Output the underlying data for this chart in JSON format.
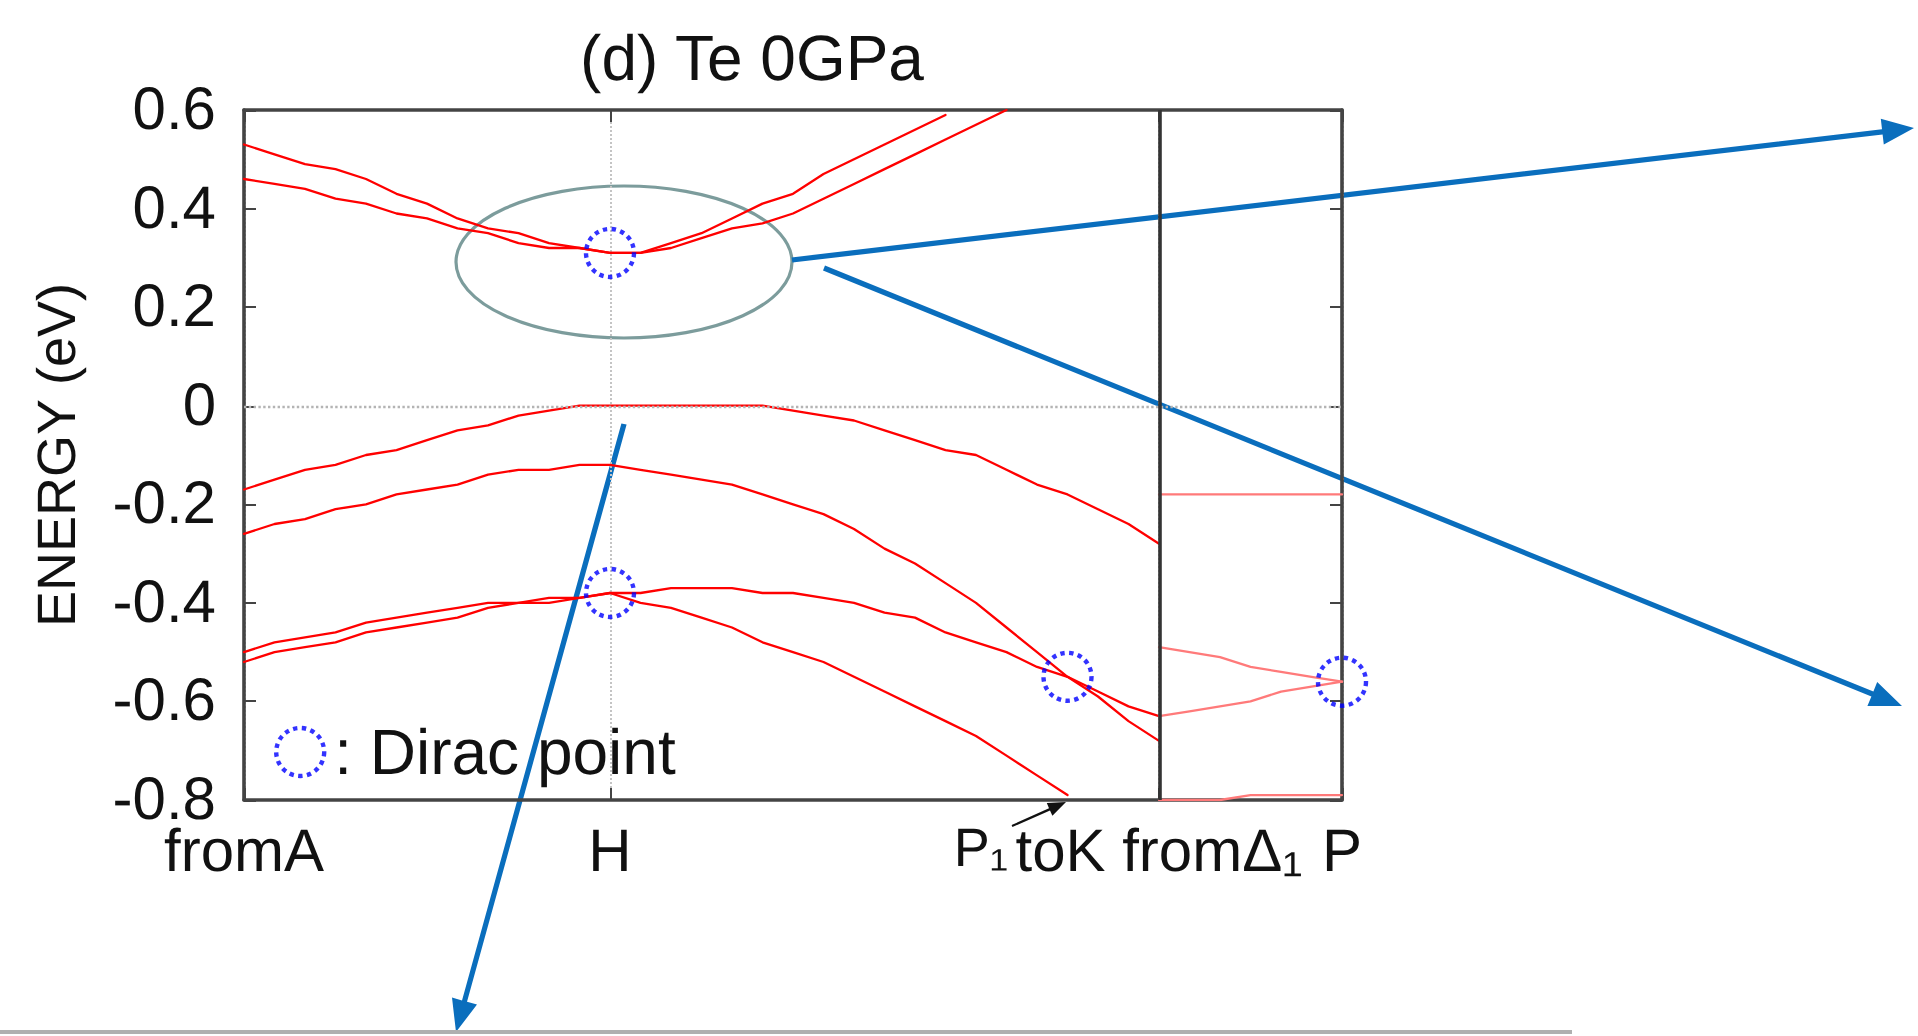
{
  "chart_data": {
    "type": "line",
    "title": "(d) Te 0GPa",
    "ylabel": "ENERGY (eV)",
    "categories": [
      "fromA",
      null,
      null,
      null,
      null,
      null,
      null,
      null,
      null,
      null,
      null,
      null,
      "H",
      null,
      null,
      null,
      null,
      null,
      null,
      null,
      null,
      null,
      null,
      null,
      null,
      null,
      null,
      null,
      null,
      null,
      "toK fromΔ₁",
      null,
      null,
      null,
      null,
      null,
      "P"
    ],
    "ylim": [
      -0.8,
      0.6
    ],
    "yticks": [
      -0.8,
      -0.6,
      -0.4,
      -0.2,
      0,
      0.2,
      0.4,
      0.6
    ],
    "grid": "x",
    "legend": "bottom left",
    "marker": "none",
    "series": [
      {
        "color": "#ff0000",
        "values": [
          0.53,
          0.51,
          0.49,
          0.48,
          0.46,
          0.43,
          0.41,
          0.38,
          0.36,
          0.35,
          0.33,
          0.32,
          0.31,
          0.31,
          0.33,
          0.35,
          0.38,
          0.41,
          0.43,
          0.47,
          0.5,
          0.53,
          0.56,
          0.59,
          null,
          null,
          null,
          null,
          null,
          null,
          null,
          null,
          null,
          null,
          null,
          null,
          null
        ]
      },
      {
        "color": "#ff0000",
        "values": [
          0.46,
          0.45,
          0.44,
          0.42,
          0.41,
          0.39,
          0.38,
          0.36,
          0.35,
          0.33,
          0.32,
          0.32,
          0.31,
          0.31,
          0.32,
          0.34,
          0.36,
          0.37,
          0.39,
          0.42,
          0.45,
          0.48,
          0.51,
          0.54,
          0.57,
          0.6,
          null,
          null,
          null,
          null,
          null,
          null,
          null,
          null,
          null,
          null,
          null
        ]
      },
      {
        "color": "#ff0000",
        "values": [
          -0.17,
          -0.15,
          -0.13,
          -0.12,
          -0.1,
          -0.09,
          -0.07,
          -0.05,
          -0.04,
          -0.02,
          -0.01,
          0,
          0,
          0,
          0,
          0,
          0,
          0,
          -0.01,
          -0.02,
          -0.03,
          -0.05,
          -0.07,
          -0.09,
          -0.1,
          -0.13,
          -0.16,
          -0.18,
          -0.21,
          -0.24,
          -0.28,
          null,
          null,
          null,
          null,
          null,
          null
        ]
      },
      {
        "color": "#ff0000",
        "values": [
          -0.26,
          -0.24,
          -0.23,
          -0.21,
          -0.2,
          -0.18,
          -0.17,
          -0.16,
          -0.14,
          -0.13,
          -0.13,
          -0.12,
          -0.12,
          -0.13,
          -0.14,
          -0.15,
          -0.16,
          -0.18,
          -0.2,
          -0.22,
          -0.25,
          -0.29,
          -0.32,
          -0.36,
          -0.4,
          -0.45,
          -0.5,
          -0.55,
          -0.59,
          -0.64,
          -0.68,
          null,
          null,
          null,
          null,
          null,
          null
        ]
      },
      {
        "color": "#ff0000",
        "values": [
          -0.5,
          -0.48,
          -0.47,
          -0.46,
          -0.44,
          -0.43,
          -0.42,
          -0.41,
          -0.4,
          -0.4,
          -0.39,
          -0.39,
          -0.38,
          -0.38,
          -0.37,
          -0.37,
          -0.37,
          -0.38,
          -0.38,
          -0.39,
          -0.4,
          -0.42,
          -0.43,
          -0.46,
          -0.48,
          -0.5,
          -0.53,
          -0.55,
          -0.58,
          -0.61,
          -0.63,
          null,
          null,
          null,
          null,
          null,
          null
        ]
      },
      {
        "color": "#ff0000",
        "values": [
          -0.52,
          -0.5,
          -0.49,
          -0.48,
          -0.46,
          -0.45,
          -0.44,
          -0.43,
          -0.41,
          -0.4,
          -0.4,
          -0.39,
          -0.38,
          -0.4,
          -0.41,
          -0.43,
          -0.45,
          -0.48,
          -0.5,
          -0.52,
          -0.55,
          -0.58,
          -0.61,
          -0.64,
          -0.67,
          -0.71,
          -0.75,
          -0.79,
          null,
          null,
          null,
          null,
          null,
          null,
          null,
          null,
          null
        ]
      },
      {
        "color": "#ff7a7a",
        "values": [
          null,
          null,
          null,
          null,
          null,
          null,
          null,
          null,
          null,
          null,
          null,
          null,
          null,
          null,
          null,
          null,
          null,
          null,
          null,
          null,
          null,
          null,
          null,
          null,
          null,
          null,
          null,
          null,
          null,
          null,
          -0.18,
          -0.18,
          -0.18,
          -0.18,
          -0.18,
          -0.18,
          -0.18
        ]
      },
      {
        "color": "#ff7a7a",
        "values": [
          null,
          null,
          null,
          null,
          null,
          null,
          null,
          null,
          null,
          null,
          null,
          null,
          null,
          null,
          null,
          null,
          null,
          null,
          null,
          null,
          null,
          null,
          null,
          null,
          null,
          null,
          null,
          null,
          null,
          null,
          -0.49,
          -0.5,
          -0.51,
          -0.53,
          -0.54,
          -0.55,
          -0.56
        ]
      },
      {
        "color": "#ff7a7a",
        "values": [
          null,
          null,
          null,
          null,
          null,
          null,
          null,
          null,
          null,
          null,
          null,
          null,
          null,
          null,
          null,
          null,
          null,
          null,
          null,
          null,
          null,
          null,
          null,
          null,
          null,
          null,
          null,
          null,
          null,
          null,
          -0.63,
          -0.62,
          -0.61,
          -0.6,
          -0.58,
          -0.57,
          -0.56
        ]
      },
      {
        "color": "#ff7a7a",
        "values": [
          null,
          null,
          null,
          null,
          null,
          null,
          null,
          null,
          null,
          null,
          null,
          null,
          null,
          null,
          null,
          null,
          null,
          null,
          null,
          null,
          null,
          null,
          null,
          null,
          null,
          null,
          null,
          null,
          null,
          null,
          -0.8,
          -0.8,
          -0.8,
          -0.79,
          -0.79,
          -0.79,
          -0.79
        ]
      },
      {
        "type": "scatter",
        "name": ": Dirac point",
        "color": "#0000ff",
        "marker": "circle",
        "line_style": "dotted",
        "values": [
          null,
          null,
          null,
          null,
          null,
          null,
          null,
          null,
          null,
          null,
          null,
          null,
          0.31,
          null,
          null,
          null,
          null,
          null,
          null,
          null,
          null,
          null,
          null,
          null,
          null,
          null,
          null,
          -0.55,
          null,
          null,
          null,
          null,
          null,
          null,
          null,
          null,
          -0.56
        ]
      },
      {
        "type": "scatter",
        "color": "#0000ff",
        "marker": "circle",
        "line_style": "dotted",
        "values": [
          null,
          null,
          null,
          null,
          null,
          null,
          null,
          null,
          null,
          null,
          null,
          null,
          -0.38,
          null,
          null,
          null,
          null,
          null,
          null,
          null,
          null,
          null,
          null,
          null,
          null,
          null,
          null,
          null,
          null,
          null,
          null,
          null,
          null,
          null,
          null,
          null,
          null
        ]
      }
    ],
    "ref_lines": [
      {
        "axis": "y",
        "value": 0,
        "color": "#b4b4b4",
        "line_style": "dotted"
      },
      {
        "axis": "x",
        "value": "toK fromΔ₁",
        "color": "#333333",
        "line_style": "solid"
      }
    ],
    "annotations": [
      "P₁"
    ]
  }
}
